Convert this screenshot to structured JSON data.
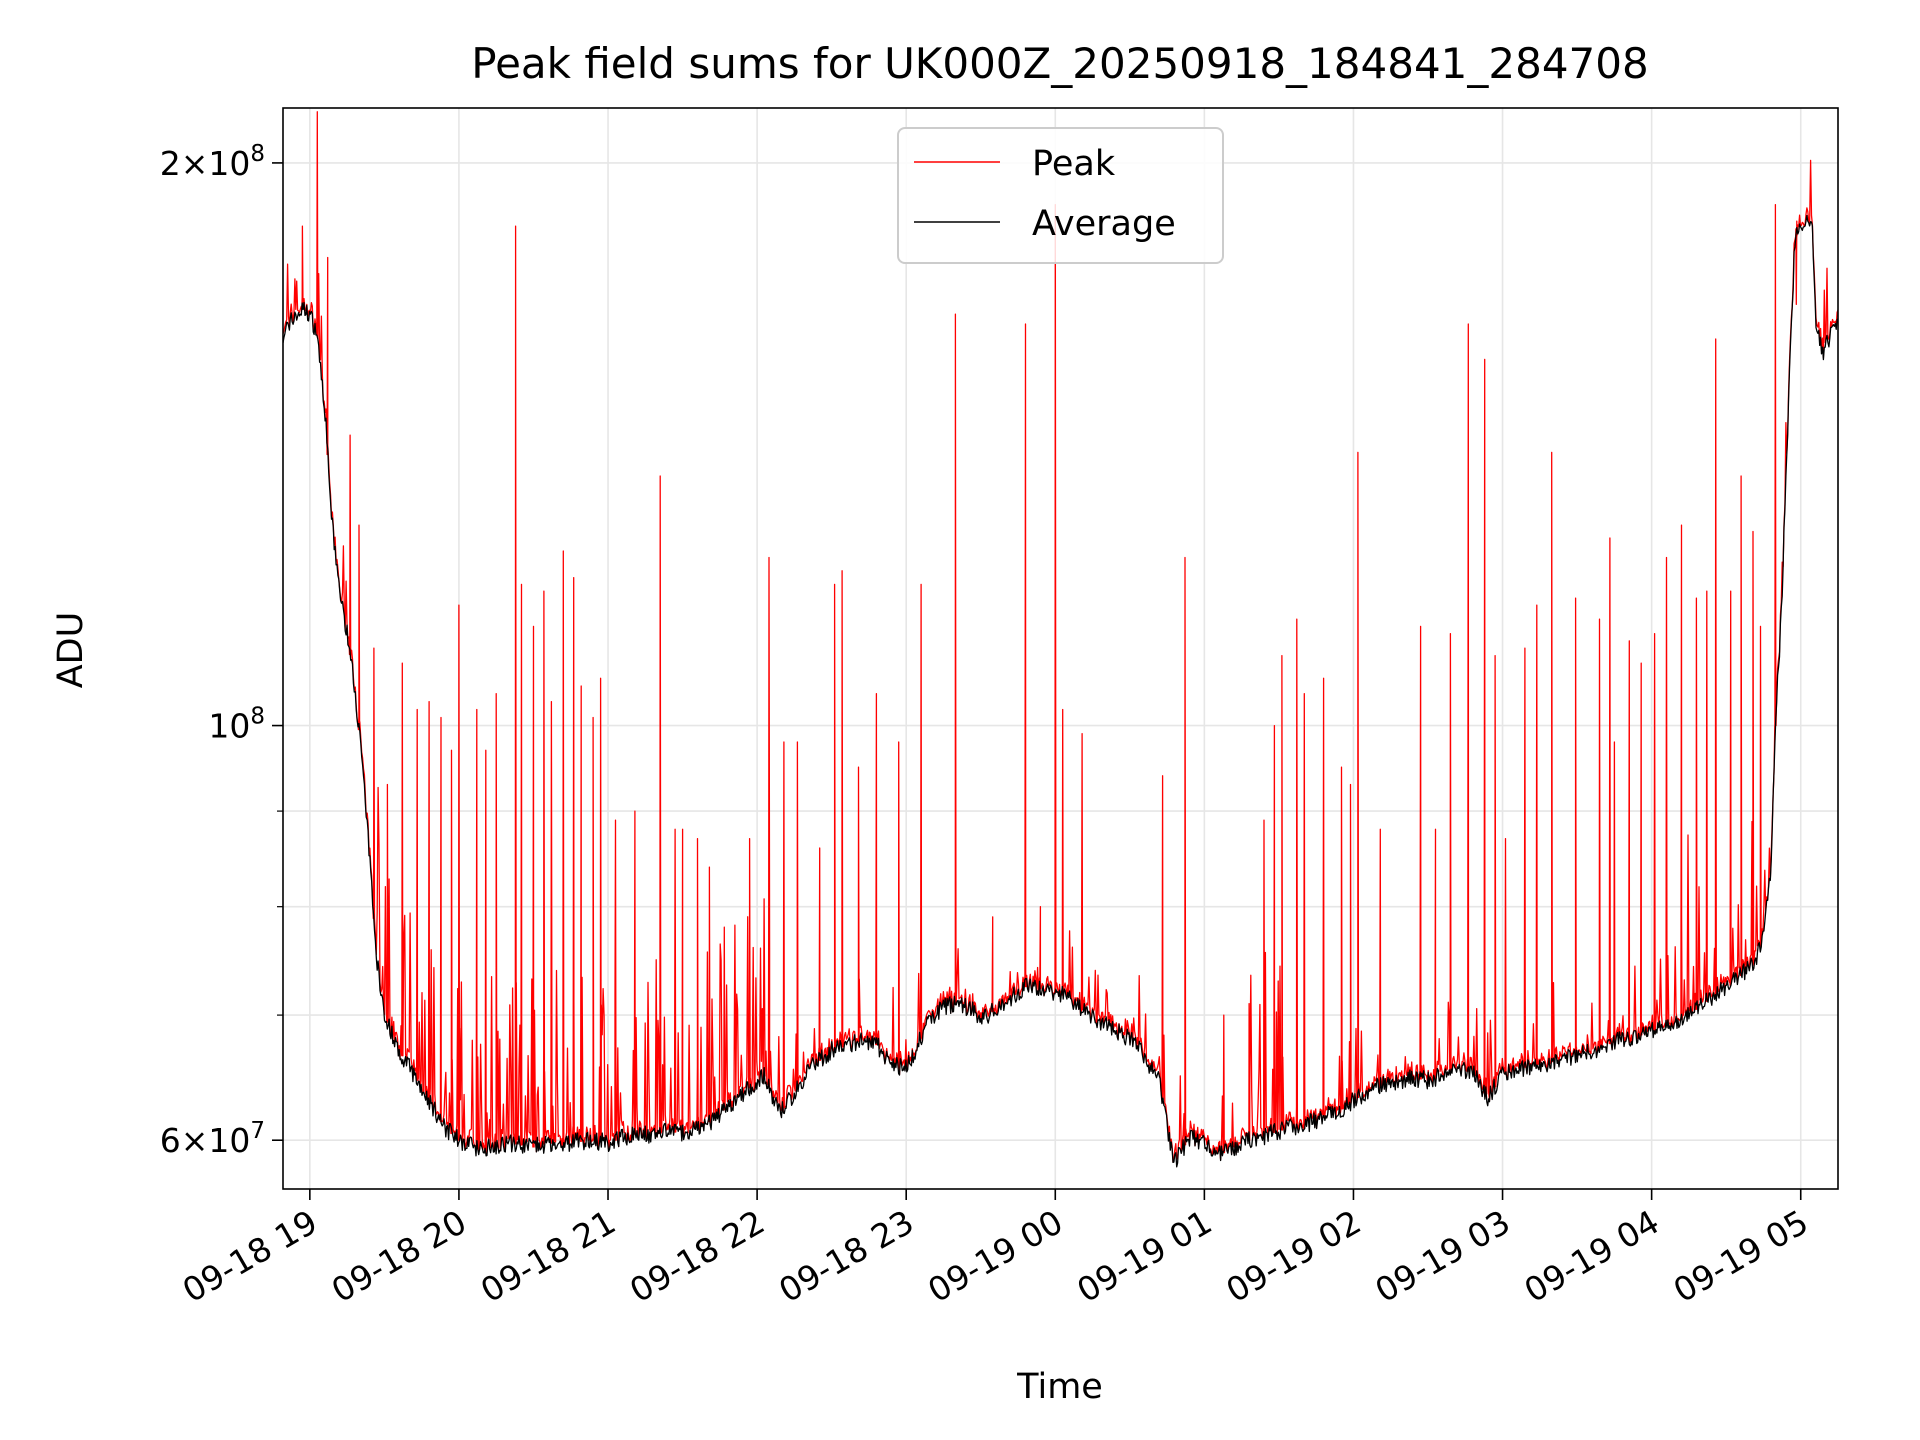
{
  "chart_data": {
    "type": "line",
    "title": "Peak field sums for UK000Z_20250918_184841_284708",
    "xlabel": "Time",
    "ylabel": "ADU",
    "y_scale": "log",
    "ylim": [
      56500000,
      214000000
    ],
    "xlim_hours": [
      -0.18,
      10.25
    ],
    "x_ticks": [
      {
        "hour": 0,
        "label": "09-18 19"
      },
      {
        "hour": 1,
        "label": "09-18 20"
      },
      {
        "hour": 2,
        "label": "09-18 21"
      },
      {
        "hour": 3,
        "label": "09-18 22"
      },
      {
        "hour": 4,
        "label": "09-18 23"
      },
      {
        "hour": 5,
        "label": "09-19 00"
      },
      {
        "hour": 6,
        "label": "09-19 01"
      },
      {
        "hour": 7,
        "label": "09-19 02"
      },
      {
        "hour": 8,
        "label": "09-19 03"
      },
      {
        "hour": 9,
        "label": "09-19 04"
      },
      {
        "hour": 10,
        "label": "09-19 05"
      }
    ],
    "y_ticks_major": [
      {
        "value": 60000000,
        "mantissa": "6",
        "exp": "7"
      },
      {
        "value": 100000000,
        "mantissa": "",
        "exp": "8"
      },
      {
        "value": 200000000,
        "mantissa": "2",
        "exp": "8"
      }
    ],
    "y_ticks_minor": [
      70000000,
      80000000,
      90000000
    ],
    "grid": true,
    "legend_position": "top-center",
    "series": [
      {
        "name": "Peak",
        "color": "#ff0000",
        "spikes": [
          [
            -0.05,
            185000000
          ],
          [
            0.05,
            213000000
          ],
          [
            0.12,
            178000000
          ],
          [
            0.27,
            143000000
          ],
          [
            0.33,
            128000000
          ],
          [
            0.43,
            110000000
          ],
          [
            0.52,
            93000000
          ],
          [
            0.62,
            108000000
          ],
          [
            0.72,
            102000000
          ],
          [
            0.8,
            103000000
          ],
          [
            0.88,
            101000000
          ],
          [
            0.95,
            97000000
          ],
          [
            1.0,
            116000000
          ],
          [
            1.12,
            102000000
          ],
          [
            1.18,
            97000000
          ],
          [
            1.25,
            104000000
          ],
          [
            1.38,
            185000000
          ],
          [
            1.42,
            119000000
          ],
          [
            1.5,
            113000000
          ],
          [
            1.57,
            118000000
          ],
          [
            1.62,
            103000000
          ],
          [
            1.7,
            124000000
          ],
          [
            1.77,
            120000000
          ],
          [
            1.82,
            105000000
          ],
          [
            1.9,
            101000000
          ],
          [
            1.95,
            106000000
          ],
          [
            2.05,
            89000000
          ],
          [
            2.18,
            90000000
          ],
          [
            2.35,
            136000000
          ],
          [
            2.45,
            88000000
          ],
          [
            2.5,
            88000000
          ],
          [
            2.6,
            87000000
          ],
          [
            2.68,
            84000000
          ],
          [
            2.78,
            78000000
          ],
          [
            2.95,
            87000000
          ],
          [
            3.08,
            123000000
          ],
          [
            3.18,
            98000000
          ],
          [
            3.27,
            98000000
          ],
          [
            3.42,
            86000000
          ],
          [
            3.52,
            119000000
          ],
          [
            3.57,
            121000000
          ],
          [
            3.68,
            95000000
          ],
          [
            3.8,
            104000000
          ],
          [
            3.95,
            98000000
          ],
          [
            4.1,
            119000000
          ],
          [
            4.33,
            166000000
          ],
          [
            4.58,
            79000000
          ],
          [
            4.8,
            164000000
          ],
          [
            4.9,
            80000000
          ],
          [
            5.0,
            190000000
          ],
          [
            5.05,
            102000000
          ],
          [
            5.18,
            99000000
          ],
          [
            5.72,
            94000000
          ],
          [
            5.87,
            123000000
          ],
          [
            6.13,
            70000000
          ],
          [
            6.3,
            71000000
          ],
          [
            6.4,
            89000000
          ],
          [
            6.47,
            100000000
          ],
          [
            6.52,
            109000000
          ],
          [
            6.62,
            114000000
          ],
          [
            6.67,
            104000000
          ],
          [
            6.8,
            106000000
          ],
          [
            6.92,
            95000000
          ],
          [
            6.98,
            93000000
          ],
          [
            7.03,
            140000000
          ],
          [
            7.18,
            88000000
          ],
          [
            7.45,
            113000000
          ],
          [
            7.55,
            88000000
          ],
          [
            7.65,
            112000000
          ],
          [
            7.77,
            164000000
          ],
          [
            7.88,
            157000000
          ],
          [
            7.95,
            109000000
          ],
          [
            8.02,
            87000000
          ],
          [
            8.15,
            110000000
          ],
          [
            8.23,
            116000000
          ],
          [
            8.33,
            140000000
          ],
          [
            8.49,
            117000000
          ],
          [
            8.65,
            114000000
          ],
          [
            8.72,
            126000000
          ],
          [
            8.75,
            98000000
          ],
          [
            8.85,
            111000000
          ],
          [
            8.93,
            108000000
          ],
          [
            9.02,
            112000000
          ],
          [
            9.1,
            123000000
          ],
          [
            9.2,
            128000000
          ],
          [
            9.3,
            117000000
          ],
          [
            9.37,
            118000000
          ],
          [
            9.43,
            161000000
          ],
          [
            9.53,
            118000000
          ],
          [
            9.6,
            136000000
          ],
          [
            9.68,
            127000000
          ],
          [
            9.73,
            113000000
          ],
          [
            9.83,
            190000000
          ],
          [
            9.97,
            168000000
          ]
        ]
      },
      {
        "name": "Average",
        "color": "#000000",
        "baseline": [
          [
            -0.18,
            162000000
          ],
          [
            -0.12,
            165000000
          ],
          [
            -0.05,
            167000000
          ],
          [
            0.0,
            166000000
          ],
          [
            0.05,
            162000000
          ],
          [
            0.1,
            148000000
          ],
          [
            0.15,
            128000000
          ],
          [
            0.2,
            118000000
          ],
          [
            0.25,
            112000000
          ],
          [
            0.3,
            105000000
          ],
          [
            0.35,
            96000000
          ],
          [
            0.4,
            85000000
          ],
          [
            0.45,
            75000000
          ],
          [
            0.5,
            70000000
          ],
          [
            0.6,
            67000000
          ],
          [
            0.7,
            65000000
          ],
          [
            0.8,
            63000000
          ],
          [
            0.9,
            61000000
          ],
          [
            1.0,
            60000000
          ],
          [
            1.1,
            59500000
          ],
          [
            1.2,
            59500000
          ],
          [
            1.3,
            59800000
          ],
          [
            1.4,
            59700000
          ],
          [
            1.5,
            59500000
          ],
          [
            1.6,
            59800000
          ],
          [
            1.7,
            59700000
          ],
          [
            1.8,
            59900000
          ],
          [
            1.9,
            60000000
          ],
          [
            2.0,
            59800000
          ],
          [
            2.1,
            60200000
          ],
          [
            2.2,
            60500000
          ],
          [
            2.3,
            60300000
          ],
          [
            2.4,
            60700000
          ],
          [
            2.5,
            60500000
          ],
          [
            2.6,
            61000000
          ],
          [
            2.7,
            61500000
          ],
          [
            2.8,
            62500000
          ],
          [
            2.9,
            63500000
          ],
          [
            3.0,
            64500000
          ],
          [
            3.05,
            65000000
          ],
          [
            3.1,
            63500000
          ],
          [
            3.15,
            62000000
          ],
          [
            3.25,
            63500000
          ],
          [
            3.35,
            65500000
          ],
          [
            3.5,
            67000000
          ],
          [
            3.6,
            67500000
          ],
          [
            3.7,
            67800000
          ],
          [
            3.8,
            67500000
          ],
          [
            3.9,
            66000000
          ],
          [
            4.0,
            65500000
          ],
          [
            4.08,
            67500000
          ],
          [
            4.15,
            69500000
          ],
          [
            4.25,
            70800000
          ],
          [
            4.35,
            71000000
          ],
          [
            4.45,
            70500000
          ],
          [
            4.5,
            69500000
          ],
          [
            4.6,
            70500000
          ],
          [
            4.7,
            71500000
          ],
          [
            4.8,
            72500000
          ],
          [
            4.9,
            72300000
          ],
          [
            5.0,
            72000000
          ],
          [
            5.1,
            71500000
          ],
          [
            5.2,
            70200000
          ],
          [
            5.3,
            69500000
          ],
          [
            5.4,
            68800000
          ],
          [
            5.5,
            68000000
          ],
          [
            5.6,
            66500000
          ],
          [
            5.7,
            64500000
          ],
          [
            5.75,
            61000000
          ],
          [
            5.8,
            58300000
          ],
          [
            5.85,
            59300000
          ],
          [
            5.9,
            60200000
          ],
          [
            6.0,
            59800000
          ],
          [
            6.1,
            59000000
          ],
          [
            6.2,
            59300000
          ],
          [
            6.3,
            60000000
          ],
          [
            6.4,
            60300000
          ],
          [
            6.5,
            60700000
          ],
          [
            6.6,
            61000000
          ],
          [
            6.7,
            61300000
          ],
          [
            6.8,
            61700000
          ],
          [
            6.9,
            62200000
          ],
          [
            7.0,
            63000000
          ],
          [
            7.1,
            63800000
          ],
          [
            7.2,
            64300000
          ],
          [
            7.3,
            64500000
          ],
          [
            7.4,
            64800000
          ],
          [
            7.5,
            64600000
          ],
          [
            7.6,
            65000000
          ],
          [
            7.7,
            65600000
          ],
          [
            7.8,
            65200000
          ],
          [
            7.9,
            63200000
          ],
          [
            8.0,
            65000000
          ],
          [
            8.1,
            65500000
          ],
          [
            8.2,
            65800000
          ],
          [
            8.3,
            66000000
          ],
          [
            8.4,
            66300000
          ],
          [
            8.5,
            66700000
          ],
          [
            8.6,
            67000000
          ],
          [
            8.7,
            67500000
          ],
          [
            8.8,
            67900000
          ],
          [
            8.9,
            68200000
          ],
          [
            9.0,
            68600000
          ],
          [
            9.1,
            69100000
          ],
          [
            9.2,
            69600000
          ],
          [
            9.3,
            70500000
          ],
          [
            9.4,
            71500000
          ],
          [
            9.5,
            72500000
          ],
          [
            9.6,
            73500000
          ],
          [
            9.7,
            75000000
          ],
          [
            9.75,
            77000000
          ],
          [
            9.8,
            84000000
          ],
          [
            9.83,
            100000000
          ],
          [
            9.87,
            115000000
          ],
          [
            9.92,
            150000000
          ],
          [
            9.96,
            182000000
          ],
          [
            10.0,
            185000000
          ],
          [
            10.05,
            188000000
          ],
          [
            10.08,
            183000000
          ],
          [
            10.1,
            165000000
          ],
          [
            10.15,
            158000000
          ],
          [
            10.2,
            162000000
          ],
          [
            10.25,
            164000000
          ]
        ]
      }
    ]
  }
}
